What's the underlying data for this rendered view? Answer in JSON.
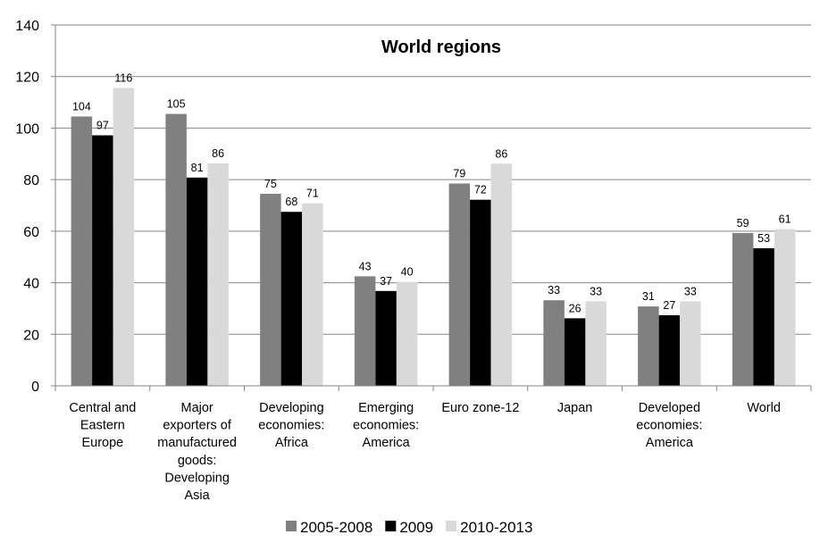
{
  "chart_data": {
    "type": "bar",
    "title": "World regions",
    "xlabel": "",
    "ylabel": "",
    "ylim": [
      0,
      140
    ],
    "ytick_step": 20,
    "grid": true,
    "legend_position": "bottom",
    "categories": [
      [
        "Central and",
        "Eastern",
        "Europe"
      ],
      [
        "Major",
        "exporters of",
        "manufactured",
        "goods:",
        "Developing",
        "Asia"
      ],
      [
        "Developing",
        "economies:",
        "Africa"
      ],
      [
        "Emerging",
        "economies:",
        "America"
      ],
      [
        "Euro zone-12"
      ],
      [
        "Japan"
      ],
      [
        "Developed",
        "economies:",
        "America"
      ],
      [
        "World"
      ]
    ],
    "series": [
      {
        "name": "2005-2008",
        "color": "#808080",
        "values": [
          104,
          105,
          75,
          43,
          79,
          33,
          31,
          59
        ],
        "bar_values": [
          104.5,
          105.5,
          74.5,
          42.5,
          78.5,
          33.2,
          30.8,
          59.3
        ]
      },
      {
        "name": "2009",
        "color": "#000000",
        "values": [
          97,
          81,
          68,
          37,
          72,
          26,
          27,
          53
        ],
        "bar_values": [
          97.2,
          80.8,
          67.5,
          36.8,
          72.2,
          26.2,
          27.4,
          53.4
        ]
      },
      {
        "name": "2010-2013",
        "color": "#d9d9d9",
        "values": [
          116,
          86,
          71,
          40,
          86,
          33,
          33,
          61
        ],
        "bar_values": [
          115.6,
          86.3,
          70.8,
          40.3,
          86.2,
          32.8,
          32.8,
          60.8
        ]
      }
    ]
  }
}
